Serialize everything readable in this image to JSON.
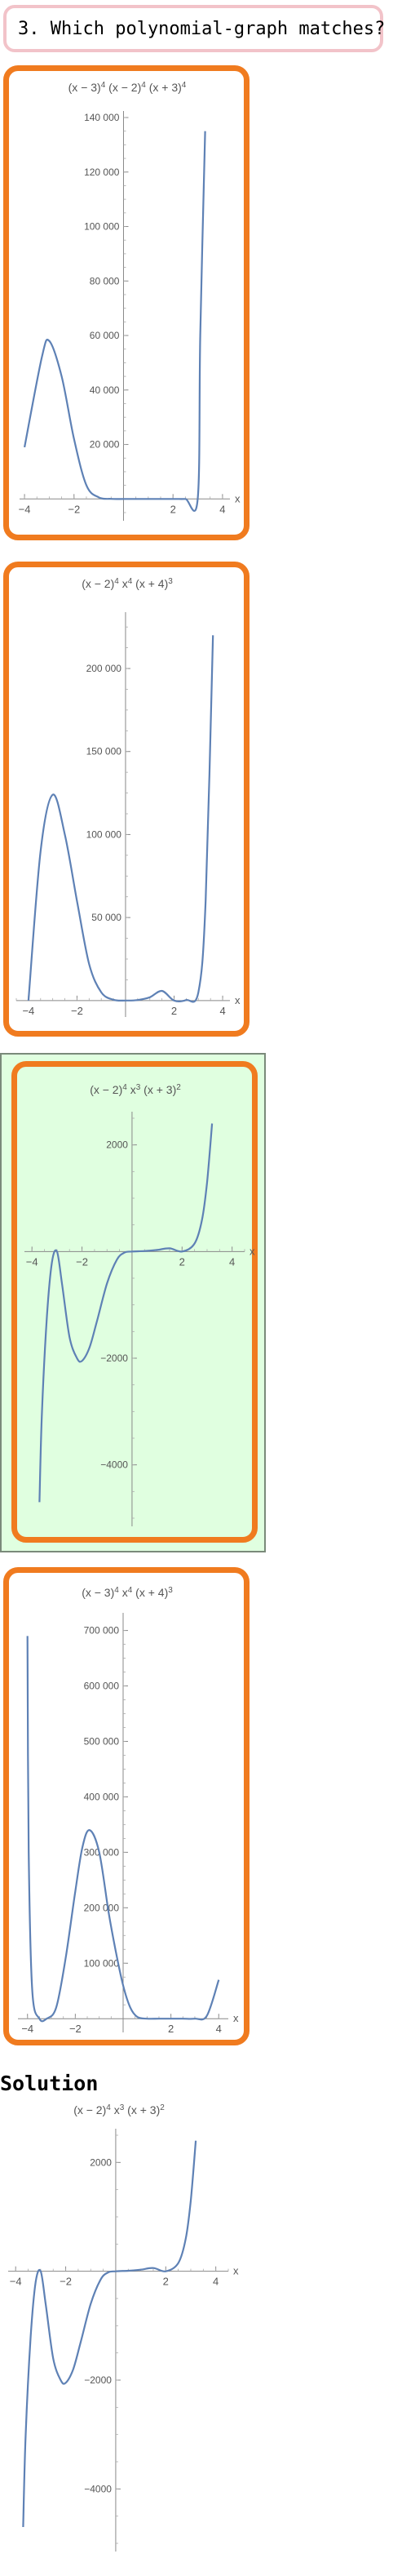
{
  "question": {
    "text": "3. Which polynomial-graph matches?"
  },
  "solution": {
    "title": "Solution"
  },
  "colors": {
    "option_border": "#f07b1f",
    "question_border": "#f2c3c9",
    "correct_bg": "#e0ffe0",
    "curve": "#5e81b5"
  },
  "chart_data": [
    {
      "id": "A",
      "type": "line",
      "title_parts": [
        "(x − 3)",
        "4",
        " (x − 2)",
        "4",
        " (x + 3)",
        "4"
      ],
      "xlabel": "x",
      "xlim": [
        -4.2,
        4.3
      ],
      "ylim": [
        -5000,
        140000
      ],
      "xticks": [
        -4,
        -2,
        2,
        4
      ],
      "yticks": [
        20000,
        40000,
        60000,
        80000,
        100000,
        120000,
        140000
      ],
      "ytick_labels": [
        "20 000",
        "40 000",
        "60 000",
        "80 000",
        "100 000",
        "120 000",
        "140 000"
      ],
      "samples": {
        "x": [
          -4.0,
          -3.3,
          -3.0,
          -2.5,
          -2.0,
          -1.5,
          -1.0,
          -0.5,
          0.0,
          0.5,
          1.0,
          2.0,
          2.5,
          3.0,
          3.1,
          3.3
        ],
        "y": [
          19000,
          52000,
          58000,
          45000,
          22000,
          5000,
          600,
          20,
          0,
          0,
          0,
          0,
          0,
          80,
          60000,
          135000
        ]
      }
    },
    {
      "id": "B",
      "type": "line",
      "title_parts": [
        "(x − 2)",
        "4",
        " x",
        "4",
        " (x + 4)",
        "3"
      ],
      "xlabel": "x",
      "xlim": [
        -4.5,
        4.3
      ],
      "ylim": [
        -5000,
        230000
      ],
      "xticks": [
        -4,
        -2,
        2,
        4
      ],
      "yticks": [
        50000,
        100000,
        150000,
        200000
      ],
      "ytick_labels": [
        "50 000",
        "100 000",
        "150 000",
        "200 000"
      ],
      "samples": {
        "x": [
          -4.0,
          -3.5,
          -3.0,
          -2.5,
          -2.0,
          -1.5,
          -1.0,
          -0.5,
          0.0,
          0.5,
          1.0,
          1.5,
          2.0,
          2.5,
          3.0,
          3.3,
          3.6
        ],
        "y": [
          0,
          90000,
          124000,
          100000,
          60000,
          22000,
          5000,
          500,
          0,
          300,
          2000,
          5800,
          0,
          300,
          5000,
          60000,
          220000
        ]
      }
    },
    {
      "id": "C",
      "type": "line",
      "correct": true,
      "title_parts": [
        "(x − 2)",
        "4",
        " x",
        "3",
        " (x + 3)",
        "2"
      ],
      "xlabel": "x",
      "xlim": [
        -4.3,
        4.5
      ],
      "ylim": [
        -5000,
        2500
      ],
      "xticks": [
        -4,
        -2,
        2,
        4
      ],
      "yticks": [
        -4000,
        -2000,
        2000
      ],
      "ytick_labels": [
        "−4000",
        "−2000",
        "2000"
      ],
      "samples": {
        "x": [
          -3.7,
          -3.6,
          -3.4,
          -3.2,
          -3.0,
          -2.8,
          -2.5,
          -2.2,
          -2.0,
          -1.7,
          -1.4,
          -1.0,
          -0.6,
          -0.3,
          0.0,
          0.5,
          1.0,
          1.5,
          2.0,
          2.5,
          2.8,
          3.0,
          3.2
        ],
        "y": [
          -4700,
          -3000,
          -1200,
          -200,
          0,
          -600,
          -1600,
          -2000,
          -2050,
          -1800,
          -1300,
          -600,
          -150,
          -20,
          0,
          10,
          30,
          60,
          0,
          150,
          600,
          1300,
          2400
        ]
      }
    },
    {
      "id": "D",
      "type": "line",
      "title_parts": [
        "(x − 3)",
        "4",
        " x",
        "4",
        " (x + 4)",
        "3"
      ],
      "xlabel": "x",
      "xlim": [
        -4.4,
        4.4
      ],
      "ylim": [
        -10000,
        720000
      ],
      "xticks": [
        -4,
        -2,
        2,
        4
      ],
      "yticks": [
        100000,
        200000,
        300000,
        400000,
        500000,
        600000,
        700000
      ],
      "ytick_labels": [
        "100 000",
        "200 000",
        "300 000",
        "400 000",
        "500 000",
        "600 000",
        "700 000"
      ],
      "samples": {
        "x": [
          -4.0,
          -3.95,
          -3.8,
          -3.5,
          -3.2,
          -2.8,
          -2.4,
          -2.0,
          -1.7,
          -1.4,
          -1.0,
          -0.6,
          -0.3,
          0.0,
          0.3,
          0.6,
          1.0,
          1.5,
          2.0,
          2.5,
          3.0,
          3.5,
          4.0
        ],
        "y": [
          690000,
          300000,
          50000,
          0,
          0,
          20000,
          110000,
          230000,
          310000,
          340000,
          300000,
          190000,
          120000,
          60000,
          20000,
          3000,
          0,
          0,
          0,
          0,
          0,
          5000,
          70000
        ]
      }
    },
    {
      "id": "S",
      "type": "line",
      "title_parts": [
        "(x − 2)",
        "4",
        " x",
        "3",
        " (x + 3)",
        "2"
      ],
      "xlabel": "x",
      "xlim": [
        -4.3,
        4.5
      ],
      "ylim": [
        -5000,
        2500
      ],
      "xticks": [
        -4,
        -2,
        2,
        4
      ],
      "yticks": [
        -4000,
        -2000,
        2000
      ],
      "ytick_labels": [
        "−4000",
        "−2000",
        "2000"
      ],
      "samples": {
        "x": [
          -3.7,
          -3.6,
          -3.4,
          -3.2,
          -3.0,
          -2.8,
          -2.5,
          -2.2,
          -2.0,
          -1.7,
          -1.4,
          -1.0,
          -0.6,
          -0.3,
          0.0,
          0.5,
          1.0,
          1.5,
          2.0,
          2.5,
          2.8,
          3.0,
          3.2
        ],
        "y": [
          -4700,
          -3000,
          -1200,
          -200,
          0,
          -600,
          -1600,
          -2000,
          -2050,
          -1800,
          -1300,
          -600,
          -150,
          -20,
          0,
          10,
          30,
          60,
          0,
          150,
          600,
          1300,
          2400
        ]
      }
    }
  ]
}
